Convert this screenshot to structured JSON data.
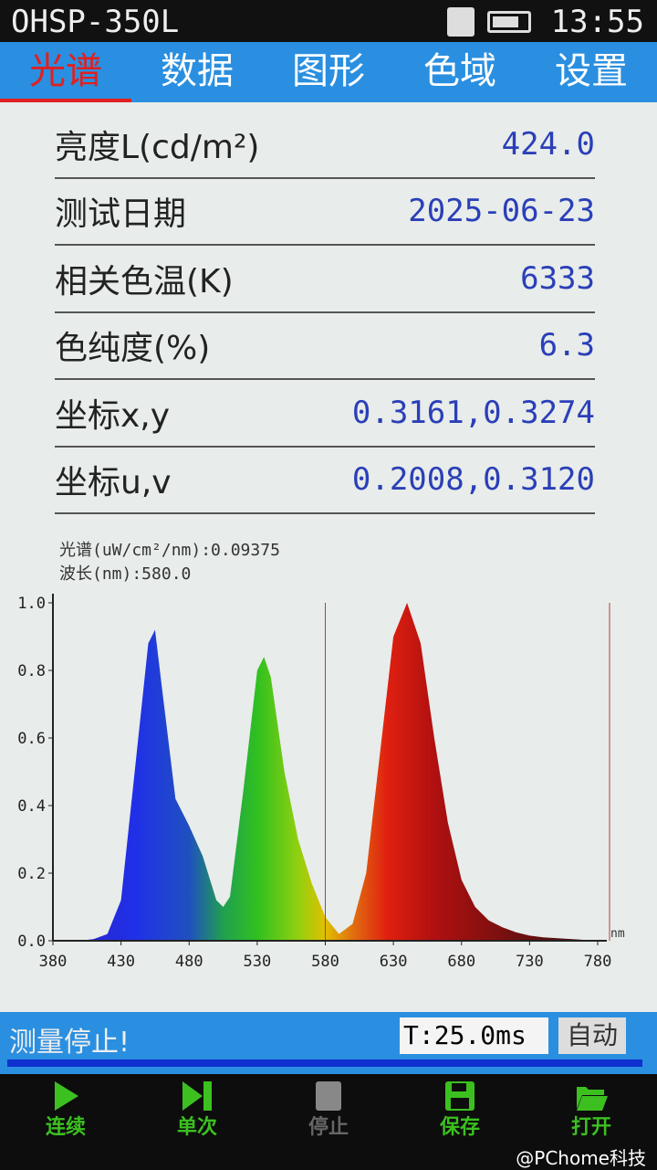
{
  "status_bar": {
    "title": "OHSP-350L",
    "clock": "13:55",
    "icons": [
      "sd-card-icon",
      "battery-icon"
    ]
  },
  "tabs": [
    {
      "label": "光谱",
      "active": true
    },
    {
      "label": "数据"
    },
    {
      "label": "图形"
    },
    {
      "label": "色域"
    },
    {
      "label": "设置"
    }
  ],
  "measurements": [
    {
      "label": "亮度L(cd/m²)",
      "value": "424.0"
    },
    {
      "label": "测试日期",
      "value": "2025-06-23"
    },
    {
      "label": "相关色温(K)",
      "value": "6333"
    },
    {
      "label": "色纯度(%)",
      "value": "6.3"
    },
    {
      "label": "坐标x,y",
      "value": "0.3161,0.3274"
    },
    {
      "label": "坐标u,v",
      "value": "0.2008,0.3120"
    }
  ],
  "cursor": {
    "spectrum_label": "光谱(uW/cm²/nm):0.09375",
    "wavelength_label": "波长(nm):580.0"
  },
  "chart_data": {
    "type": "area",
    "xlabel": "nm",
    "ylabel": "",
    "xlim": [
      380,
      780
    ],
    "ylim": [
      0,
      1.0
    ],
    "xticks": [
      380,
      430,
      480,
      530,
      580,
      630,
      680,
      730,
      780
    ],
    "yticks": [
      "0.0",
      "0.2",
      "0.4",
      "0.6",
      "0.8",
      "1.0"
    ],
    "cursor_wavelength": 580,
    "x": [
      380,
      390,
      400,
      410,
      420,
      430,
      440,
      450,
      455,
      460,
      470,
      480,
      490,
      500,
      505,
      510,
      520,
      530,
      535,
      540,
      550,
      560,
      570,
      580,
      590,
      600,
      610,
      620,
      630,
      640,
      650,
      660,
      670,
      680,
      690,
      700,
      710,
      720,
      730,
      740,
      760,
      780
    ],
    "y": [
      0,
      0,
      0,
      0.005,
      0.02,
      0.12,
      0.5,
      0.88,
      0.92,
      0.75,
      0.42,
      0.34,
      0.25,
      0.12,
      0.1,
      0.13,
      0.45,
      0.8,
      0.84,
      0.78,
      0.5,
      0.3,
      0.17,
      0.07,
      0.02,
      0.05,
      0.2,
      0.55,
      0.9,
      1.0,
      0.88,
      0.6,
      0.35,
      0.18,
      0.1,
      0.06,
      0.04,
      0.025,
      0.015,
      0.01,
      0.005,
      0
    ]
  },
  "status": {
    "message": "测量停止!",
    "integration_time": "T:25.0ms",
    "mode": "自动"
  },
  "toolbar": [
    {
      "label": "连续",
      "icon": "play-icon"
    },
    {
      "label": "单次",
      "icon": "step-icon"
    },
    {
      "label": "停止",
      "icon": "stop-icon",
      "disabled": true
    },
    {
      "label": "保存",
      "icon": "save-icon"
    },
    {
      "label": "打开",
      "icon": "folder-open-icon"
    }
  ],
  "watermark": "@PChome科技",
  "colors": {
    "tab_bar": "#2a8fe0",
    "active_tab": "#e02020",
    "value_text": "#2a3fb8",
    "toolbar_green": "#3cc020"
  }
}
